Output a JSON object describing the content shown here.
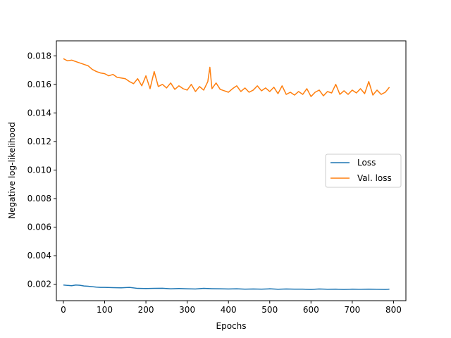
{
  "chart_data": {
    "type": "line",
    "xlabel": "Epochs",
    "ylabel": "Negative log-likelihood",
    "xlim": [
      -17,
      830
    ],
    "ylim": [
      0.00085,
      0.01905
    ],
    "xticks": [
      0,
      100,
      200,
      300,
      400,
      500,
      600,
      700,
      800
    ],
    "yticks": [
      0.002,
      0.004,
      0.006,
      0.008,
      0.01,
      0.012,
      0.014,
      0.016,
      0.018
    ],
    "ytick_labels": [
      "0.002",
      "0.004",
      "0.006",
      "0.008",
      "0.010",
      "0.012",
      "0.014",
      "0.016",
      "0.018"
    ],
    "legend": {
      "placement": "center-right"
    },
    "series": [
      {
        "name": "Loss",
        "color": "#1f77b4",
        "x": [
          0,
          10,
          20,
          30,
          40,
          50,
          60,
          70,
          80,
          90,
          100,
          120,
          140,
          160,
          180,
          200,
          220,
          240,
          260,
          280,
          300,
          320,
          340,
          360,
          380,
          400,
          420,
          440,
          460,
          480,
          500,
          520,
          540,
          560,
          580,
          600,
          620,
          640,
          660,
          680,
          700,
          720,
          740,
          760,
          780,
          790
        ],
        "y": [
          0.00195,
          0.00192,
          0.0019,
          0.00195,
          0.00193,
          0.00188,
          0.00186,
          0.00183,
          0.0018,
          0.00178,
          0.00178,
          0.00176,
          0.00175,
          0.00178,
          0.00171,
          0.0017,
          0.00171,
          0.00172,
          0.00168,
          0.0017,
          0.00168,
          0.00167,
          0.00171,
          0.00169,
          0.00168,
          0.00167,
          0.00168,
          0.00166,
          0.00167,
          0.00166,
          0.00168,
          0.00165,
          0.00167,
          0.00166,
          0.00166,
          0.00164,
          0.00167,
          0.00165,
          0.00166,
          0.00164,
          0.00166,
          0.00165,
          0.00166,
          0.00165,
          0.00164,
          0.00166
        ]
      },
      {
        "name": "Val. loss",
        "color": "#ff7f0e",
        "x": [
          0,
          10,
          20,
          30,
          40,
          50,
          60,
          70,
          80,
          90,
          100,
          110,
          120,
          130,
          140,
          150,
          160,
          170,
          180,
          190,
          200,
          210,
          220,
          230,
          240,
          250,
          260,
          270,
          280,
          290,
          300,
          310,
          320,
          330,
          340,
          350,
          355,
          360,
          370,
          380,
          390,
          400,
          410,
          420,
          430,
          440,
          450,
          460,
          470,
          480,
          490,
          500,
          510,
          520,
          530,
          540,
          550,
          560,
          570,
          580,
          590,
          600,
          610,
          620,
          630,
          640,
          650,
          660,
          670,
          680,
          690,
          700,
          710,
          720,
          730,
          740,
          750,
          760,
          770,
          780,
          790
        ],
        "y": [
          0.0178,
          0.01765,
          0.0177,
          0.0176,
          0.0175,
          0.0174,
          0.0173,
          0.01705,
          0.0169,
          0.0168,
          0.01675,
          0.0166,
          0.0167,
          0.0165,
          0.01645,
          0.0164,
          0.0162,
          0.01605,
          0.0164,
          0.0159,
          0.0166,
          0.0157,
          0.0169,
          0.01585,
          0.016,
          0.01575,
          0.0161,
          0.01565,
          0.0159,
          0.0157,
          0.0156,
          0.016,
          0.0155,
          0.01585,
          0.0156,
          0.0162,
          0.0172,
          0.0157,
          0.0161,
          0.01565,
          0.01555,
          0.01545,
          0.0157,
          0.0159,
          0.0155,
          0.01575,
          0.01545,
          0.0156,
          0.0159,
          0.01555,
          0.01575,
          0.0155,
          0.0158,
          0.01535,
          0.0159,
          0.0153,
          0.01545,
          0.01525,
          0.0155,
          0.0153,
          0.0157,
          0.01515,
          0.01545,
          0.0156,
          0.0152,
          0.0155,
          0.0154,
          0.016,
          0.0153,
          0.01555,
          0.0153,
          0.0156,
          0.0154,
          0.0157,
          0.01535,
          0.0162,
          0.01525,
          0.0156,
          0.0153,
          0.01545,
          0.0158
        ]
      }
    ]
  }
}
